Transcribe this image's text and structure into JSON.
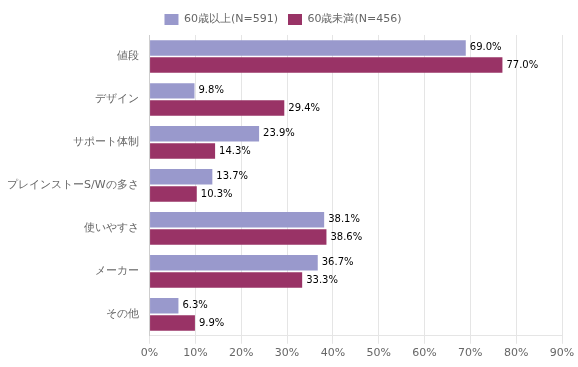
{
  "chart_data": {
    "type": "bar",
    "orientation": "horizontal",
    "categories": [
      "値段",
      "デザイン",
      "サポート体制",
      "プレインストーS/Wの多さ",
      "使いやすさ",
      "メーカー",
      "その他"
    ],
    "series": [
      {
        "name": "60歳以上(N=591)",
        "color": "#9999CC",
        "values": [
          69.0,
          9.8,
          23.9,
          13.7,
          38.1,
          36.7,
          6.3
        ],
        "value_labels": [
          "69.0%",
          "9.8%",
          "23.9%",
          "13.7%",
          "38.1%",
          "36.7%",
          "6.3%"
        ]
      },
      {
        "name": "60歳未満(N=456)",
        "color": "#993366",
        "values": [
          77.0,
          29.4,
          14.3,
          10.3,
          38.6,
          33.3,
          9.9
        ],
        "value_labels": [
          "77.0%",
          "29.4%",
          "14.3%",
          "10.3%",
          "38.6%",
          "33.3%",
          "9.9%"
        ]
      }
    ],
    "xlim": [
      0,
      90
    ],
    "xticks": [
      {
        "value": 0,
        "label": "0%"
      },
      {
        "value": 10,
        "label": "10%"
      },
      {
        "value": 20,
        "label": "20%"
      },
      {
        "value": 30,
        "label": "30%"
      },
      {
        "value": 40,
        "label": "40%"
      },
      {
        "value": 50,
        "label": "50%"
      },
      {
        "value": 60,
        "label": "60%"
      },
      {
        "value": 70,
        "label": "70%"
      },
      {
        "value": 80,
        "label": "80%"
      },
      {
        "value": 90,
        "label": "90%"
      }
    ],
    "grid": true,
    "legend": "top",
    "data_labels": true
  }
}
